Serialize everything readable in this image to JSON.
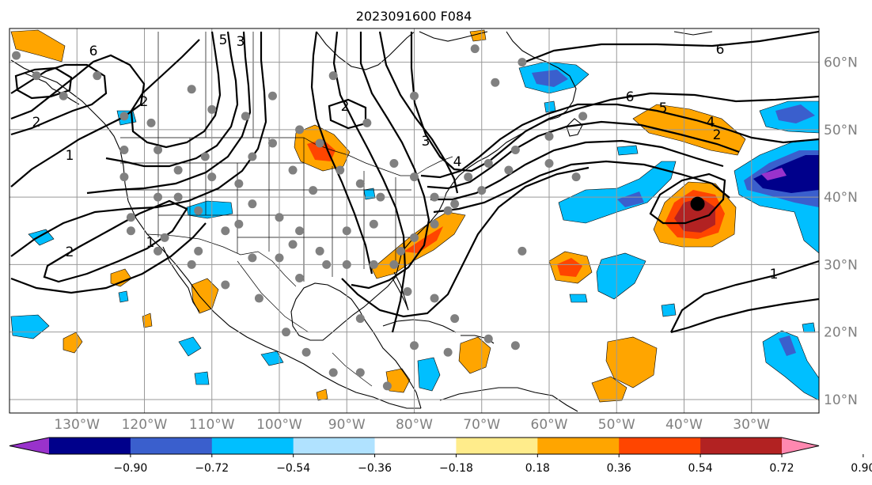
{
  "title": "2023091600 F084",
  "map": {
    "projection": "plate-carree",
    "lon_range": [
      -140,
      -20
    ],
    "lat_range": [
      8,
      65
    ],
    "lat_ticks": [
      {
        "value": 10,
        "label": "10°N"
      },
      {
        "value": 20,
        "label": "20°N"
      },
      {
        "value": 30,
        "label": "30°N"
      },
      {
        "value": 40,
        "label": "40°N"
      },
      {
        "value": 50,
        "label": "50°N"
      },
      {
        "value": 60,
        "label": "60°N"
      }
    ],
    "lon_ticks": [
      {
        "value": -130,
        "label": "130°W"
      },
      {
        "value": -120,
        "label": "120°W"
      },
      {
        "value": -110,
        "label": "110°W"
      },
      {
        "value": -100,
        "label": "100°W"
      },
      {
        "value": -90,
        "label": "90°W"
      },
      {
        "value": -80,
        "label": "80°W"
      },
      {
        "value": -70,
        "label": "70°W"
      },
      {
        "value": -60,
        "label": "60°W"
      },
      {
        "value": -50,
        "label": "50°W"
      },
      {
        "value": -40,
        "label": "40°W"
      },
      {
        "value": -30,
        "label": "30°W"
      }
    ],
    "grid": true,
    "contour_labels": [
      "6",
      "5",
      "3",
      "2",
      "6",
      "6",
      "5",
      "4",
      "2",
      "2",
      "1",
      "2",
      "1",
      "3",
      "2",
      "4",
      "1"
    ],
    "storm_center": {
      "lon": -38,
      "lat": 39
    },
    "station_dots": [
      [
        -139,
        61
      ],
      [
        -136,
        58
      ],
      [
        -132,
        55
      ],
      [
        -127,
        58
      ],
      [
        -123,
        52
      ],
      [
        -119,
        51
      ],
      [
        -113,
        56
      ],
      [
        -110,
        53
      ],
      [
        -105,
        52
      ],
      [
        -101,
        55
      ],
      [
        -97,
        50
      ],
      [
        -94,
        48
      ],
      [
        -92,
        58
      ],
      [
        -87,
        51
      ],
      [
        -80,
        55
      ],
      [
        -71,
        62
      ],
      [
        -68,
        57
      ],
      [
        -64,
        60
      ],
      [
        -60,
        49
      ],
      [
        -55,
        52
      ],
      [
        -123,
        47
      ],
      [
        -118,
        47
      ],
      [
        -115,
        44
      ],
      [
        -111,
        46
      ],
      [
        -106,
        42
      ],
      [
        -104,
        46
      ],
      [
        -101,
        48
      ],
      [
        -98,
        44
      ],
      [
        -95,
        41
      ],
      [
        -91,
        44
      ],
      [
        -88,
        42
      ],
      [
        -85,
        40
      ],
      [
        -83,
        45
      ],
      [
        -80,
        43
      ],
      [
        -77,
        40
      ],
      [
        -75,
        38
      ],
      [
        -72,
        43
      ],
      [
        -69,
        45
      ],
      [
        -65,
        47
      ],
      [
        -60,
        45
      ],
      [
        -123,
        43
      ],
      [
        -118,
        40
      ],
      [
        -115,
        40
      ],
      [
        -110,
        43
      ],
      [
        -104,
        39
      ],
      [
        -100,
        37
      ],
      [
        -97,
        35
      ],
      [
        -94,
        32
      ],
      [
        -90,
        35
      ],
      [
        -86,
        36
      ],
      [
        -82,
        32
      ],
      [
        -80,
        34
      ],
      [
        -77,
        36
      ],
      [
        -74,
        39
      ],
      [
        -70,
        41
      ],
      [
        -66,
        44
      ],
      [
        -56,
        43
      ],
      [
        -122,
        35
      ],
      [
        -117,
        34
      ],
      [
        -112,
        32
      ],
      [
        -108,
        35
      ],
      [
        -104,
        31
      ],
      [
        -100,
        31
      ],
      [
        -97,
        28
      ],
      [
        -93,
        30
      ],
      [
        -90,
        30
      ],
      [
        -86,
        30
      ],
      [
        -83,
        30
      ],
      [
        -81,
        26
      ],
      [
        -77,
        25
      ],
      [
        -74,
        22
      ],
      [
        -69,
        19
      ],
      [
        -65,
        18
      ],
      [
        -80,
        18
      ],
      [
        -75,
        17
      ],
      [
        -99,
        20
      ],
      [
        -96,
        17
      ],
      [
        -92,
        14
      ],
      [
        -88,
        14
      ],
      [
        -84,
        12
      ],
      [
        -88,
        22
      ],
      [
        -103,
        25
      ],
      [
        -108,
        27
      ],
      [
        -113,
        30
      ],
      [
        -118,
        32
      ],
      [
        -122,
        37
      ],
      [
        -64,
        32
      ],
      [
        -112,
        38
      ],
      [
        -106,
        36
      ],
      [
        -98,
        33
      ]
    ],
    "colorbar": {
      "levels": [
        -0.9,
        -0.72,
        -0.54,
        -0.36,
        -0.18,
        0.18,
        0.36,
        0.54,
        0.72,
        0.9
      ],
      "tick_labels": [
        "−0.90",
        "−0.72",
        "−0.54",
        "−0.36",
        "−0.18",
        "0.18",
        "0.36",
        "0.54",
        "0.72",
        "0.90"
      ],
      "colors": [
        "#9932cc",
        "#00008b",
        "#3a5fcd",
        "#00bfff",
        "#b0e2ff",
        "#ffffff",
        "#ffec8b",
        "#ffa500",
        "#ff4500",
        "#b22222",
        "#ff88b0"
      ]
    }
  }
}
